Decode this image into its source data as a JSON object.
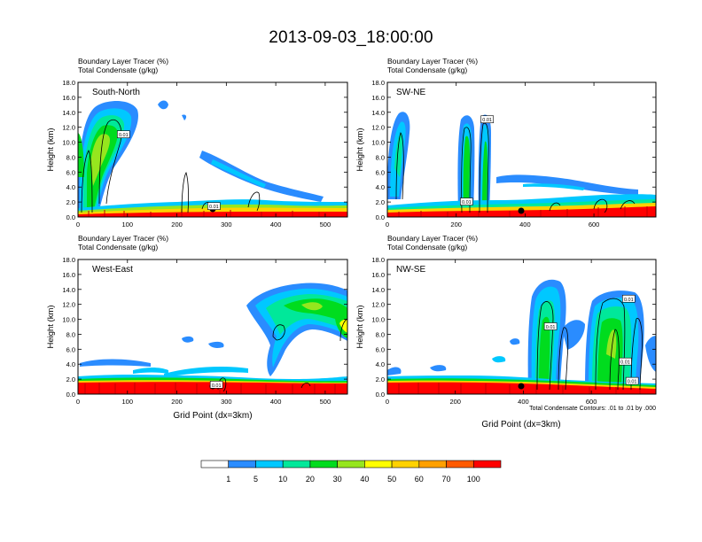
{
  "title": "2013-09-03_18:00:00",
  "chart_data": [
    {
      "type": "heatmap",
      "panel_label": "South-North",
      "subtitle_lines": [
        "Boundary Layer Tracer   (%)",
        "Total Condensate   (g/kg)"
      ],
      "ylabel": "Height (km)",
      "xlabel": "",
      "xlim": [
        0,
        545
      ],
      "ylim": [
        0,
        18
      ],
      "xticks": [
        0,
        100,
        200,
        300,
        400,
        500
      ],
      "yticks": [
        "0.0",
        "2.0",
        "4.0",
        "6.0",
        "8.0",
        "10.0",
        "12.0",
        "14.0",
        "16.0",
        "18.0"
      ],
      "contour_labels": [
        {
          "x": 92,
          "y": 11.0,
          "text": "0.01"
        },
        {
          "x": 275,
          "y": 1.4,
          "text": "0.01"
        }
      ]
    },
    {
      "type": "heatmap",
      "panel_label": "SW-NE",
      "subtitle_lines": [
        "Boundary Layer Tracer   (%)",
        "Total Condensate   (g/kg)"
      ],
      "ylabel": "Height (km)",
      "xlabel": "",
      "xlim": [
        0,
        780
      ],
      "ylim": [
        0,
        18
      ],
      "xticks": [
        0,
        200,
        400,
        600
      ],
      "yticks": [
        "0.0",
        "2.0",
        "4.0",
        "6.0",
        "8.0",
        "10.0",
        "12.0",
        "14.0",
        "16.0",
        "18.0"
      ],
      "contour_labels": [
        {
          "x": 290,
          "y": 13.0,
          "text": "0.01"
        },
        {
          "x": 230,
          "y": 2.0,
          "text": "0.01"
        }
      ]
    },
    {
      "type": "heatmap",
      "panel_label": "West-East",
      "subtitle_lines": [
        "Boundary Layer Tracer   (%)",
        "Total Condensate   (g/kg)"
      ],
      "ylabel": "Height (km)",
      "xlabel": "Grid Point (dx=3km)",
      "xlim": [
        0,
        545
      ],
      "ylim": [
        0,
        18
      ],
      "xticks": [
        0,
        100,
        200,
        300,
        400,
        500
      ],
      "yticks": [
        "0.0",
        "2.0",
        "4.0",
        "6.0",
        "8.0",
        "10.0",
        "12.0",
        "14.0",
        "16.0",
        "18.0"
      ],
      "contour_labels": [
        {
          "x": 280,
          "y": 1.2,
          "text": "0.01"
        }
      ]
    },
    {
      "type": "heatmap",
      "panel_label": "NW-SE",
      "subtitle_lines": [
        "Boundary Layer Tracer   (%)",
        "Total Condensate   (g/kg)"
      ],
      "ylabel": "Height (km)",
      "xlabel": "Grid Point (dx=3km)",
      "xlim": [
        0,
        790
      ],
      "ylim": [
        0,
        18
      ],
      "xticks": [
        0,
        200,
        400,
        600
      ],
      "yticks": [
        "0.0",
        "2.0",
        "4.0",
        "6.0",
        "8.0",
        "10.0",
        "12.0",
        "14.0",
        "16.0",
        "18.0"
      ],
      "note": "Total Condensate Contours: .01 to .01 by .000",
      "contour_labels": [
        {
          "x": 480,
          "y": 9.0,
          "text": "0.01"
        },
        {
          "x": 710,
          "y": 12.7,
          "text": "0.01"
        },
        {
          "x": 700,
          "y": 4.3,
          "text": "0.01"
        },
        {
          "x": 720,
          "y": 1.7,
          "text": "0.01"
        }
      ]
    }
  ],
  "colorbar": {
    "colors": [
      "#ffffff",
      "#2a8cff",
      "#00c8ff",
      "#00e89a",
      "#00dc1e",
      "#96e61e",
      "#ffff00",
      "#ffd200",
      "#ffa000",
      "#ff5a00",
      "#ff0000"
    ],
    "labels": [
      "1",
      "5",
      "10",
      "20",
      "30",
      "40",
      "50",
      "60",
      "70",
      "100"
    ]
  }
}
